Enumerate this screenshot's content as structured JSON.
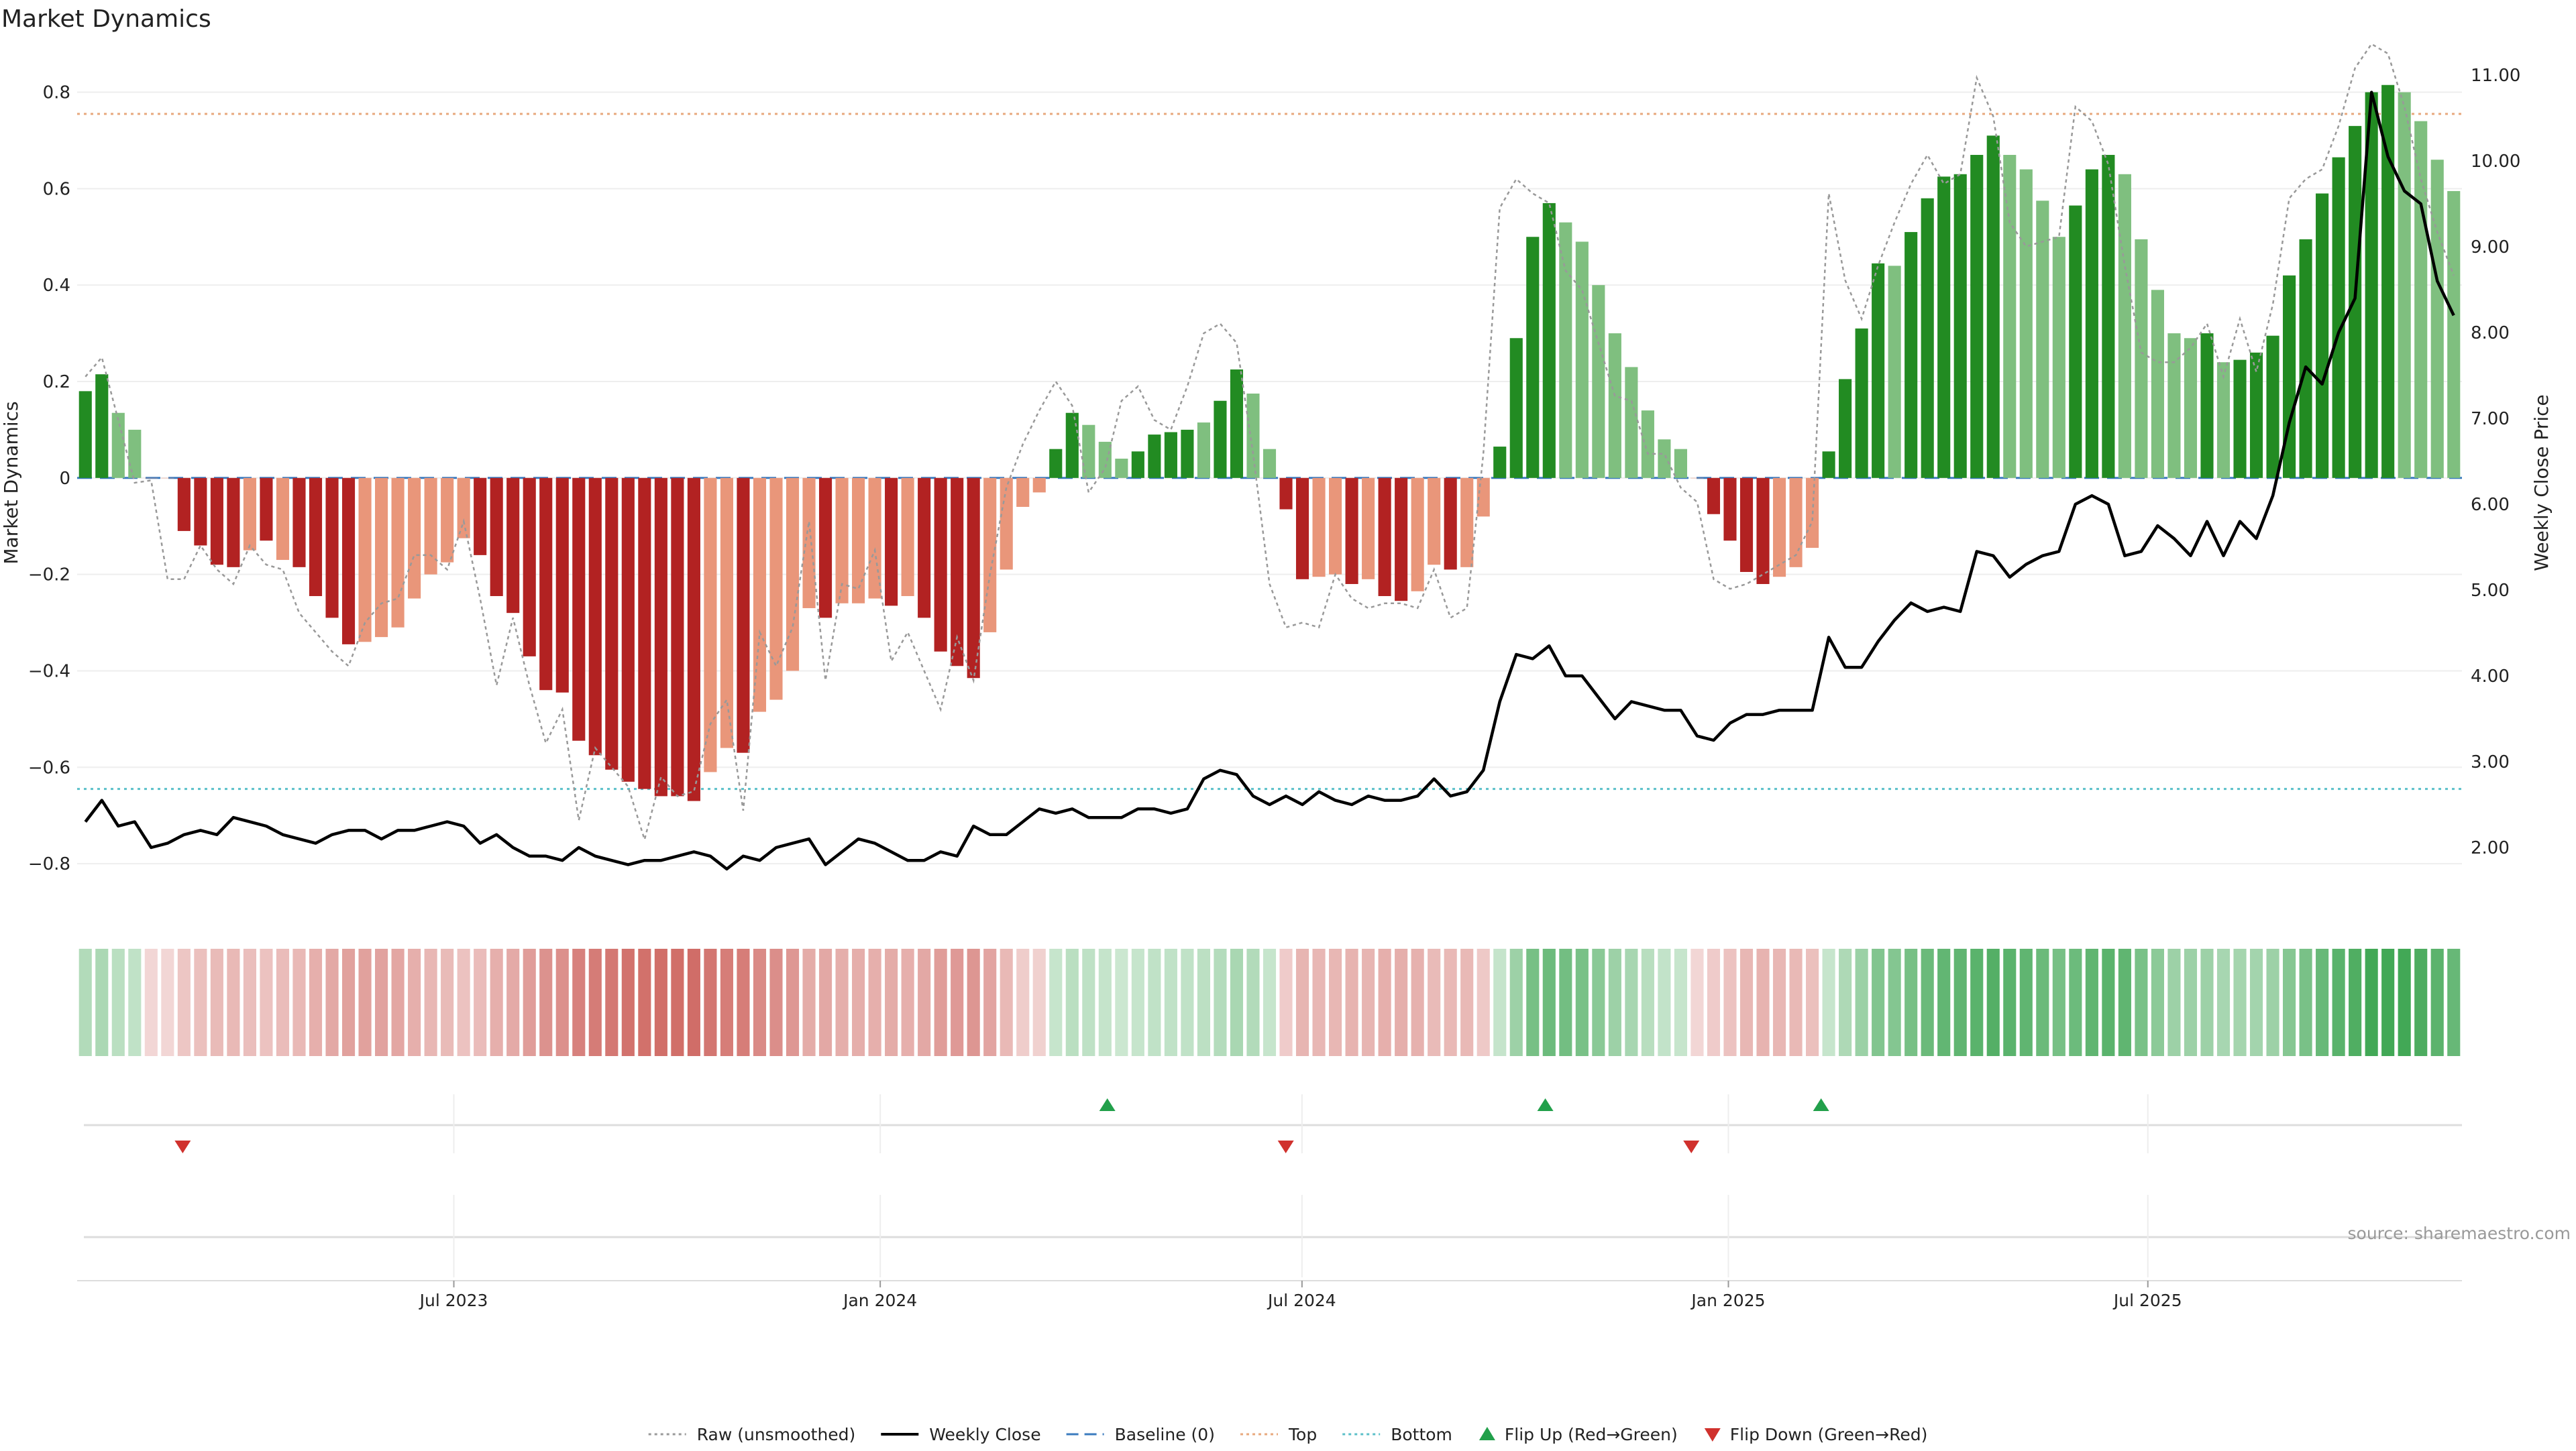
{
  "title": "Market Dynamics",
  "source": "source: sharemaestro.com",
  "chart_data": {
    "type": "bar",
    "title": "Market Dynamics",
    "ylabel": "Market Dynamics",
    "y2label": "Weekly Close Price",
    "ylim": [
      -0.9,
      0.88
    ],
    "y2lim": [
      1.25,
      11.25
    ],
    "yticks": [
      -0.8,
      -0.6,
      -0.4,
      -0.2,
      0,
      0.2,
      0.4,
      0.6,
      0.8
    ],
    "ytick_labels": [
      "−0.8",
      "−0.6",
      "−0.4",
      "−0.2",
      "0",
      "0.2",
      "0.4",
      "0.6",
      "0.8"
    ],
    "y2ticks": [
      2,
      3,
      4,
      5,
      6,
      7,
      8,
      9,
      10,
      11
    ],
    "y2tick_labels": [
      "2.00",
      "3.00",
      "4.00",
      "5.00",
      "6.00",
      "7.00",
      "8.00",
      "9.00",
      "10.00",
      "11.00"
    ],
    "x_start": "2023-01-23",
    "x_end": "2025-11-10",
    "xticks": [
      "2023-07-01",
      "2024-01-01",
      "2024-07-01",
      "2025-01-01",
      "2025-07-01"
    ],
    "xtick_labels": [
      "Jul 2023",
      "Jan 2024",
      "Jul 2024",
      "Jan 2025",
      "Jul 2025"
    ],
    "top_line": 0.755,
    "bottom_line": -0.645,
    "baseline": 0,
    "legend": [
      {
        "label": "Raw (unsmoothed)",
        "style": "dotted",
        "color": "#999999"
      },
      {
        "label": "Weekly Close",
        "style": "solid",
        "color": "#000000"
      },
      {
        "label": "Baseline (0)",
        "style": "dashed",
        "color": "#3b7bbf"
      },
      {
        "label": "Top",
        "style": "dotted",
        "color": "#e8a97e"
      },
      {
        "label": "Bottom",
        "style": "dotted",
        "color": "#5bc0c9"
      },
      {
        "label": "Flip Up (Red→Green)",
        "style": "triangle-up",
        "color": "#22a04b"
      },
      {
        "label": "Flip Down (Green→Red)",
        "style": "triangle-down",
        "color": "#d0312d"
      }
    ],
    "legend_position": "bottom-center",
    "colors": {
      "green_strong": "#228b22",
      "green_light": "#7fbf7f",
      "red_strong": "#b22222",
      "red_light": "#e9967a",
      "flip_up": "#22a04b",
      "flip_down": "#d0312d"
    },
    "flip_up": [
      "2024-04-08",
      "2024-10-14",
      "2025-02-10"
    ],
    "flip_down": [
      "2023-03-06",
      "2024-06-24",
      "2024-12-16"
    ],
    "weeks": [
      {
        "v": 0.18,
        "raw": 0.21,
        "close": 2.3,
        "c": "G"
      },
      {
        "v": 0.215,
        "raw": 0.25,
        "close": 2.55,
        "c": "G"
      },
      {
        "v": 0.135,
        "raw": 0.12,
        "close": 2.25,
        "c": "g"
      },
      {
        "v": 0.1,
        "raw": -0.01,
        "close": 2.3,
        "c": "g"
      },
      {
        "v": 0.0,
        "raw": -0.005,
        "close": 2.0,
        "c": "r"
      },
      {
        "v": 0.0,
        "raw": -0.21,
        "close": 2.05,
        "c": "r"
      },
      {
        "v": -0.11,
        "raw": -0.21,
        "close": 2.15,
        "c": "R"
      },
      {
        "v": -0.14,
        "raw": -0.14,
        "close": 2.2,
        "c": "R"
      },
      {
        "v": -0.18,
        "raw": -0.19,
        "close": 2.15,
        "c": "R"
      },
      {
        "v": -0.185,
        "raw": -0.22,
        "close": 2.35,
        "c": "R"
      },
      {
        "v": -0.15,
        "raw": -0.14,
        "close": 2.3,
        "c": "r"
      },
      {
        "v": -0.13,
        "raw": -0.18,
        "close": 2.25,
        "c": "R"
      },
      {
        "v": -0.17,
        "raw": -0.19,
        "close": 2.15,
        "c": "r"
      },
      {
        "v": -0.185,
        "raw": -0.28,
        "close": 2.1,
        "c": "R"
      },
      {
        "v": -0.245,
        "raw": -0.32,
        "close": 2.05,
        "c": "R"
      },
      {
        "v": -0.29,
        "raw": -0.36,
        "close": 2.15,
        "c": "R"
      },
      {
        "v": -0.345,
        "raw": -0.39,
        "close": 2.2,
        "c": "R"
      },
      {
        "v": -0.34,
        "raw": -0.3,
        "close": 2.2,
        "c": "r"
      },
      {
        "v": -0.33,
        "raw": -0.26,
        "close": 2.1,
        "c": "r"
      },
      {
        "v": -0.31,
        "raw": -0.25,
        "close": 2.2,
        "c": "r"
      },
      {
        "v": -0.25,
        "raw": -0.16,
        "close": 2.2,
        "c": "r"
      },
      {
        "v": -0.2,
        "raw": -0.16,
        "close": 2.25,
        "c": "r"
      },
      {
        "v": -0.175,
        "raw": -0.19,
        "close": 2.3,
        "c": "r"
      },
      {
        "v": -0.125,
        "raw": -0.09,
        "close": 2.25,
        "c": "r"
      },
      {
        "v": -0.16,
        "raw": -0.25,
        "close": 2.05,
        "c": "R"
      },
      {
        "v": -0.245,
        "raw": -0.43,
        "close": 2.15,
        "c": "R"
      },
      {
        "v": -0.28,
        "raw": -0.29,
        "close": 2.0,
        "c": "R"
      },
      {
        "v": -0.37,
        "raw": -0.43,
        "close": 1.9,
        "c": "R"
      },
      {
        "v": -0.44,
        "raw": -0.55,
        "close": 1.9,
        "c": "R"
      },
      {
        "v": -0.445,
        "raw": -0.48,
        "close": 1.85,
        "c": "R"
      },
      {
        "v": -0.545,
        "raw": -0.71,
        "close": 2.0,
        "c": "R"
      },
      {
        "v": -0.575,
        "raw": -0.56,
        "close": 1.9,
        "c": "R"
      },
      {
        "v": -0.605,
        "raw": -0.6,
        "close": 1.85,
        "c": "R"
      },
      {
        "v": -0.63,
        "raw": -0.64,
        "close": 1.8,
        "c": "R"
      },
      {
        "v": -0.645,
        "raw": -0.75,
        "close": 1.85,
        "c": "R"
      },
      {
        "v": -0.66,
        "raw": -0.62,
        "close": 1.85,
        "c": "R"
      },
      {
        "v": -0.66,
        "raw": -0.66,
        "close": 1.9,
        "c": "R"
      },
      {
        "v": -0.67,
        "raw": -0.65,
        "close": 1.95,
        "c": "R"
      },
      {
        "v": -0.61,
        "raw": -0.51,
        "close": 1.9,
        "c": "r"
      },
      {
        "v": -0.56,
        "raw": -0.46,
        "close": 1.75,
        "c": "r"
      },
      {
        "v": -0.57,
        "raw": -0.69,
        "close": 1.9,
        "c": "R"
      },
      {
        "v": -0.485,
        "raw": -0.32,
        "close": 1.85,
        "c": "r"
      },
      {
        "v": -0.46,
        "raw": -0.39,
        "close": 2.0,
        "c": "r"
      },
      {
        "v": -0.4,
        "raw": -0.31,
        "close": 2.05,
        "c": "r"
      },
      {
        "v": -0.27,
        "raw": -0.09,
        "close": 2.1,
        "c": "r"
      },
      {
        "v": -0.29,
        "raw": -0.42,
        "close": 1.8,
        "c": "R"
      },
      {
        "v": -0.26,
        "raw": -0.22,
        "close": 1.95,
        "c": "r"
      },
      {
        "v": -0.26,
        "raw": -0.23,
        "close": 2.1,
        "c": "r"
      },
      {
        "v": -0.25,
        "raw": -0.15,
        "close": 2.05,
        "c": "r"
      },
      {
        "v": -0.265,
        "raw": -0.38,
        "close": 1.95,
        "c": "R"
      },
      {
        "v": -0.245,
        "raw": -0.32,
        "close": 1.85,
        "c": "r"
      },
      {
        "v": -0.29,
        "raw": -0.4,
        "close": 1.85,
        "c": "R"
      },
      {
        "v": -0.36,
        "raw": -0.48,
        "close": 1.95,
        "c": "R"
      },
      {
        "v": -0.39,
        "raw": -0.33,
        "close": 1.9,
        "c": "R"
      },
      {
        "v": -0.415,
        "raw": -0.42,
        "close": 2.25,
        "c": "R"
      },
      {
        "v": -0.32,
        "raw": -0.2,
        "close": 2.15,
        "c": "r"
      },
      {
        "v": -0.19,
        "raw": -0.02,
        "close": 2.15,
        "c": "r"
      },
      {
        "v": -0.06,
        "raw": 0.07,
        "close": 2.3,
        "c": "r"
      },
      {
        "v": -0.03,
        "raw": 0.14,
        "close": 2.45,
        "c": "r"
      },
      {
        "v": 0.06,
        "raw": 0.2,
        "close": 2.4,
        "c": "G"
      },
      {
        "v": 0.135,
        "raw": 0.15,
        "close": 2.45,
        "c": "G"
      },
      {
        "v": 0.11,
        "raw": -0.03,
        "close": 2.35,
        "c": "g"
      },
      {
        "v": 0.075,
        "raw": 0.02,
        "close": 2.35,
        "c": "g"
      },
      {
        "v": 0.04,
        "raw": 0.16,
        "close": 2.35,
        "c": "g"
      },
      {
        "v": 0.055,
        "raw": 0.19,
        "close": 2.45,
        "c": "G"
      },
      {
        "v": 0.09,
        "raw": 0.12,
        "close": 2.45,
        "c": "G"
      },
      {
        "v": 0.095,
        "raw": 0.1,
        "close": 2.4,
        "c": "G"
      },
      {
        "v": 0.1,
        "raw": 0.19,
        "close": 2.45,
        "c": "G"
      },
      {
        "v": 0.115,
        "raw": 0.3,
        "close": 2.8,
        "c": "g"
      },
      {
        "v": 0.16,
        "raw": 0.32,
        "close": 2.9,
        "c": "G"
      },
      {
        "v": 0.225,
        "raw": 0.28,
        "close": 2.85,
        "c": "G"
      },
      {
        "v": 0.175,
        "raw": 0.05,
        "close": 2.6,
        "c": "g"
      },
      {
        "v": 0.06,
        "raw": -0.22,
        "close": 2.5,
        "c": "g"
      },
      {
        "v": -0.065,
        "raw": -0.31,
        "close": 2.6,
        "c": "R"
      },
      {
        "v": -0.21,
        "raw": -0.3,
        "close": 2.5,
        "c": "R"
      },
      {
        "v": -0.205,
        "raw": -0.31,
        "close": 2.65,
        "c": "r"
      },
      {
        "v": -0.2,
        "raw": -0.2,
        "close": 2.55,
        "c": "r"
      },
      {
        "v": -0.22,
        "raw": -0.25,
        "close": 2.5,
        "c": "R"
      },
      {
        "v": -0.21,
        "raw": -0.27,
        "close": 2.6,
        "c": "r"
      },
      {
        "v": -0.245,
        "raw": -0.26,
        "close": 2.55,
        "c": "R"
      },
      {
        "v": -0.255,
        "raw": -0.26,
        "close": 2.55,
        "c": "R"
      },
      {
        "v": -0.235,
        "raw": -0.27,
        "close": 2.6,
        "c": "r"
      },
      {
        "v": -0.18,
        "raw": -0.19,
        "close": 2.8,
        "c": "r"
      },
      {
        "v": -0.19,
        "raw": -0.29,
        "close": 2.6,
        "c": "R"
      },
      {
        "v": -0.185,
        "raw": -0.27,
        "close": 2.65,
        "c": "r"
      },
      {
        "v": -0.08,
        "raw": 0.05,
        "close": 2.9,
        "c": "r"
      },
      {
        "v": 0.065,
        "raw": 0.56,
        "close": 3.7,
        "c": "G"
      },
      {
        "v": 0.29,
        "raw": 0.62,
        "close": 4.25,
        "c": "G"
      },
      {
        "v": 0.5,
        "raw": 0.59,
        "close": 4.2,
        "c": "G"
      },
      {
        "v": 0.57,
        "raw": 0.57,
        "close": 4.35,
        "c": "G"
      },
      {
        "v": 0.53,
        "raw": 0.43,
        "close": 4.0,
        "c": "g"
      },
      {
        "v": 0.49,
        "raw": 0.39,
        "close": 4.0,
        "c": "g"
      },
      {
        "v": 0.4,
        "raw": 0.28,
        "close": 3.75,
        "c": "g"
      },
      {
        "v": 0.3,
        "raw": 0.17,
        "close": 3.5,
        "c": "g"
      },
      {
        "v": 0.23,
        "raw": 0.16,
        "close": 3.7,
        "c": "g"
      },
      {
        "v": 0.14,
        "raw": 0.05,
        "close": 3.65,
        "c": "g"
      },
      {
        "v": 0.08,
        "raw": 0.05,
        "close": 3.6,
        "c": "g"
      },
      {
        "v": 0.06,
        "raw": -0.02,
        "close": 3.6,
        "c": "g"
      },
      {
        "v": 0.0,
        "raw": -0.05,
        "close": 3.3,
        "c": "r"
      },
      {
        "v": -0.075,
        "raw": -0.21,
        "close": 3.25,
        "c": "R"
      },
      {
        "v": -0.13,
        "raw": -0.23,
        "close": 3.45,
        "c": "R"
      },
      {
        "v": -0.195,
        "raw": -0.22,
        "close": 3.55,
        "c": "R"
      },
      {
        "v": -0.22,
        "raw": -0.2,
        "close": 3.55,
        "c": "R"
      },
      {
        "v": -0.205,
        "raw": -0.18,
        "close": 3.6,
        "c": "r"
      },
      {
        "v": -0.185,
        "raw": -0.16,
        "close": 3.6,
        "c": "r"
      },
      {
        "v": -0.145,
        "raw": -0.09,
        "close": 3.6,
        "c": "r"
      },
      {
        "v": 0.055,
        "raw": 0.59,
        "close": 4.45,
        "c": "G"
      },
      {
        "v": 0.205,
        "raw": 0.41,
        "close": 4.1,
        "c": "G"
      },
      {
        "v": 0.31,
        "raw": 0.33,
        "close": 4.1,
        "c": "G"
      },
      {
        "v": 0.445,
        "raw": 0.44,
        "close": 4.4,
        "c": "G"
      },
      {
        "v": 0.44,
        "raw": 0.53,
        "close": 4.65,
        "c": "g"
      },
      {
        "v": 0.51,
        "raw": 0.61,
        "close": 4.85,
        "c": "G"
      },
      {
        "v": 0.58,
        "raw": 0.67,
        "close": 4.75,
        "c": "G"
      },
      {
        "v": 0.625,
        "raw": 0.61,
        "close": 4.8,
        "c": "G"
      },
      {
        "v": 0.63,
        "raw": 0.63,
        "close": 4.75,
        "c": "G"
      },
      {
        "v": 0.67,
        "raw": 0.83,
        "close": 5.45,
        "c": "G"
      },
      {
        "v": 0.71,
        "raw": 0.75,
        "close": 5.4,
        "c": "G"
      },
      {
        "v": 0.67,
        "raw": 0.53,
        "close": 5.15,
        "c": "g"
      },
      {
        "v": 0.64,
        "raw": 0.48,
        "close": 5.3,
        "c": "g"
      },
      {
        "v": 0.575,
        "raw": 0.49,
        "close": 5.4,
        "c": "g"
      },
      {
        "v": 0.5,
        "raw": 0.5,
        "close": 5.45,
        "c": "g"
      },
      {
        "v": 0.565,
        "raw": 0.77,
        "close": 6.0,
        "c": "G"
      },
      {
        "v": 0.64,
        "raw": 0.74,
        "close": 6.1,
        "c": "G"
      },
      {
        "v": 0.67,
        "raw": 0.65,
        "close": 6.0,
        "c": "G"
      },
      {
        "v": 0.63,
        "raw": 0.44,
        "close": 5.4,
        "c": "g"
      },
      {
        "v": 0.495,
        "raw": 0.26,
        "close": 5.45,
        "c": "g"
      },
      {
        "v": 0.39,
        "raw": 0.24,
        "close": 5.75,
        "c": "g"
      },
      {
        "v": 0.3,
        "raw": 0.24,
        "close": 5.6,
        "c": "g"
      },
      {
        "v": 0.29,
        "raw": 0.27,
        "close": 5.4,
        "c": "g"
      },
      {
        "v": 0.3,
        "raw": 0.32,
        "close": 5.8,
        "c": "G"
      },
      {
        "v": 0.24,
        "raw": 0.21,
        "close": 5.4,
        "c": "g"
      },
      {
        "v": 0.245,
        "raw": 0.33,
        "close": 5.8,
        "c": "G"
      },
      {
        "v": 0.26,
        "raw": 0.22,
        "close": 5.6,
        "c": "G"
      },
      {
        "v": 0.295,
        "raw": 0.36,
        "close": 6.1,
        "c": "G"
      },
      {
        "v": 0.42,
        "raw": 0.58,
        "close": 6.95,
        "c": "G"
      },
      {
        "v": 0.495,
        "raw": 0.62,
        "close": 7.6,
        "c": "G"
      },
      {
        "v": 0.59,
        "raw": 0.64,
        "close": 7.4,
        "c": "G"
      },
      {
        "v": 0.665,
        "raw": 0.73,
        "close": 8.0,
        "c": "G"
      },
      {
        "v": 0.73,
        "raw": 0.85,
        "close": 8.4,
        "c": "G"
      },
      {
        "v": 0.8,
        "raw": 0.9,
        "close": 10.8,
        "c": "G"
      },
      {
        "v": 0.815,
        "raw": 0.88,
        "close": 10.05,
        "c": "G"
      },
      {
        "v": 0.8,
        "raw": 0.77,
        "close": 9.65,
        "c": "g"
      },
      {
        "v": 0.74,
        "raw": 0.62,
        "close": 9.5,
        "c": "g"
      },
      {
        "v": 0.66,
        "raw": 0.51,
        "close": 8.6,
        "c": "g"
      },
      {
        "v": 0.595,
        "raw": 0.42,
        "close": 8.2,
        "c": "g"
      }
    ]
  }
}
